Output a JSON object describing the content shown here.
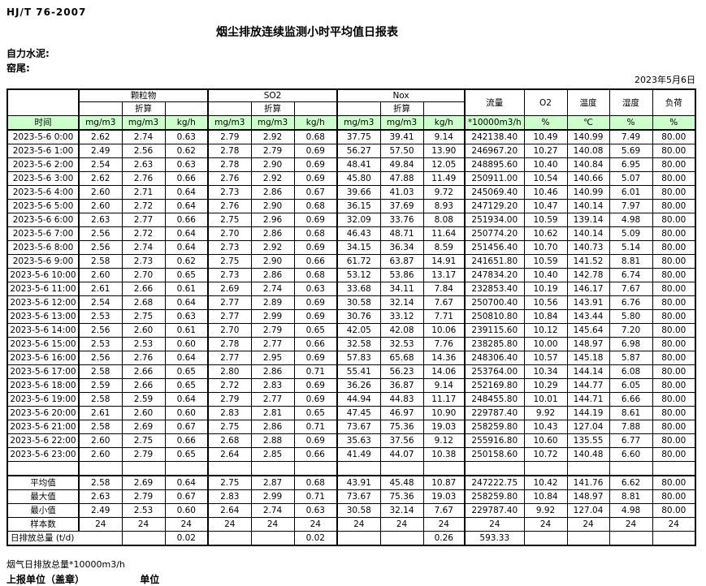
{
  "page": {
    "standard": "HJ/T  76-2007",
    "title": "烟尘排放连续监测小时平均值日报表",
    "company": "自力水泥:",
    "site": "窑尾:",
    "date": "2023年5月6日"
  },
  "colors": {
    "header_green": "#ccffcc",
    "border": "#000000"
  },
  "table": {
    "groups": {
      "pm": "颗粒物",
      "so2": "SO2",
      "nox": "Nox",
      "flow": "流量",
      "o2": "O2",
      "temp": "温度",
      "humidity": "湿度",
      "load": "负荷"
    },
    "conv_label": "折算",
    "time_label": "时间",
    "units": [
      "mg/m3",
      "mg/m3",
      "kg/h",
      "mg/m3",
      "mg/m3",
      "kg/h",
      "mg/m3",
      "mg/m3",
      "kg/h",
      "*10000m3/h",
      "%",
      "℃",
      "%",
      "%"
    ],
    "rows": [
      [
        "2023-5-6 0:00",
        "2.62",
        "2.74",
        "0.63",
        "2.79",
        "2.92",
        "0.68",
        "37.75",
        "39.41",
        "9.14",
        "242138.40",
        "10.49",
        "140.99",
        "7.49",
        "80.00"
      ],
      [
        "2023-5-6 1:00",
        "2.49",
        "2.56",
        "0.62",
        "2.78",
        "2.79",
        "0.69",
        "56.27",
        "57.50",
        "13.90",
        "246967.20",
        "10.27",
        "140.08",
        "5.69",
        "80.00"
      ],
      [
        "2023-5-6 2:00",
        "2.54",
        "2.63",
        "0.63",
        "2.78",
        "2.90",
        "0.69",
        "48.41",
        "49.84",
        "12.05",
        "248895.60",
        "10.40",
        "140.84",
        "6.95",
        "80.00"
      ],
      [
        "2023-5-6 3:00",
        "2.62",
        "2.76",
        "0.66",
        "2.76",
        "2.92",
        "0.69",
        "45.80",
        "47.88",
        "11.49",
        "250911.00",
        "10.54",
        "140.66",
        "5.07",
        "80.00"
      ],
      [
        "2023-5-6 4:00",
        "2.60",
        "2.71",
        "0.64",
        "2.73",
        "2.86",
        "0.67",
        "39.66",
        "41.03",
        "9.72",
        "245069.40",
        "10.46",
        "140.99",
        "6.01",
        "80.00"
      ],
      [
        "2023-5-6 5:00",
        "2.60",
        "2.72",
        "0.64",
        "2.76",
        "2.90",
        "0.68",
        "36.15",
        "37.69",
        "8.93",
        "247129.20",
        "10.47",
        "140.14",
        "7.97",
        "80.00"
      ],
      [
        "2023-5-6 6:00",
        "2.63",
        "2.77",
        "0.66",
        "2.75",
        "2.96",
        "0.69",
        "32.09",
        "33.76",
        "8.08",
        "251934.00",
        "10.59",
        "139.14",
        "4.98",
        "80.00"
      ],
      [
        "2023-5-6 7:00",
        "2.56",
        "2.72",
        "0.64",
        "2.70",
        "2.86",
        "0.68",
        "46.43",
        "48.71",
        "11.64",
        "250774.20",
        "10.62",
        "140.14",
        "5.09",
        "80.00"
      ],
      [
        "2023-5-6 8:00",
        "2.56",
        "2.74",
        "0.64",
        "2.73",
        "2.92",
        "0.69",
        "34.15",
        "36.34",
        "8.59",
        "251456.40",
        "10.70",
        "140.73",
        "5.14",
        "80.00"
      ],
      [
        "2023-5-6 9:00",
        "2.58",
        "2.73",
        "0.62",
        "2.75",
        "2.90",
        "0.66",
        "61.72",
        "63.87",
        "14.91",
        "241651.80",
        "10.59",
        "141.52",
        "8.81",
        "80.00"
      ],
      [
        "2023-5-6 10:00",
        "2.60",
        "2.70",
        "0.65",
        "2.73",
        "2.86",
        "0.68",
        "53.12",
        "53.86",
        "13.17",
        "247834.20",
        "10.40",
        "142.78",
        "6.74",
        "80.00"
      ],
      [
        "2023-5-6 11:00",
        "2.61",
        "2.66",
        "0.61",
        "2.69",
        "2.74",
        "0.63",
        "33.68",
        "34.11",
        "7.84",
        "232853.40",
        "10.19",
        "146.17",
        "7.67",
        "80.00"
      ],
      [
        "2023-5-6 12:00",
        "2.54",
        "2.68",
        "0.64",
        "2.77",
        "2.89",
        "0.69",
        "30.58",
        "32.14",
        "7.67",
        "250700.40",
        "10.56",
        "143.91",
        "6.76",
        "80.00"
      ],
      [
        "2023-5-6 13:00",
        "2.53",
        "2.75",
        "0.63",
        "2.77",
        "2.99",
        "0.69",
        "30.76",
        "33.12",
        "7.71",
        "250810.80",
        "10.84",
        "143.44",
        "5.80",
        "80.00"
      ],
      [
        "2023-5-6 14:00",
        "2.56",
        "2.60",
        "0.61",
        "2.70",
        "2.79",
        "0.65",
        "42.05",
        "42.08",
        "10.06",
        "239115.60",
        "10.12",
        "145.64",
        "7.20",
        "80.00"
      ],
      [
        "2023-5-6 15:00",
        "2.53",
        "2.53",
        "0.60",
        "2.78",
        "2.77",
        "0.66",
        "32.58",
        "32.53",
        "7.76",
        "238285.80",
        "10.00",
        "148.97",
        "6.98",
        "80.00"
      ],
      [
        "2023-5-6 16:00",
        "2.56",
        "2.76",
        "0.64",
        "2.77",
        "2.95",
        "0.69",
        "57.83",
        "65.68",
        "14.36",
        "248306.40",
        "10.57",
        "145.18",
        "5.87",
        "80.00"
      ],
      [
        "2023-5-6 17:00",
        "2.58",
        "2.66",
        "0.65",
        "2.80",
        "2.86",
        "0.71",
        "55.41",
        "56.23",
        "14.06",
        "253764.00",
        "10.34",
        "144.14",
        "6.08",
        "80.00"
      ],
      [
        "2023-5-6 18:00",
        "2.59",
        "2.66",
        "0.65",
        "2.72",
        "2.83",
        "0.69",
        "36.26",
        "36.87",
        "9.14",
        "252169.80",
        "10.29",
        "144.77",
        "6.05",
        "80.00"
      ],
      [
        "2023-5-6 19:00",
        "2.58",
        "2.59",
        "0.64",
        "2.79",
        "2.77",
        "0.69",
        "44.94",
        "44.83",
        "11.17",
        "248455.80",
        "10.01",
        "144.71",
        "6.66",
        "80.00"
      ],
      [
        "2023-5-6 20:00",
        "2.61",
        "2.60",
        "0.60",
        "2.83",
        "2.81",
        "0.65",
        "47.45",
        "46.97",
        "10.90",
        "229787.40",
        "9.92",
        "144.19",
        "8.61",
        "80.00"
      ],
      [
        "2023-5-6 21:00",
        "2.58",
        "2.69",
        "0.67",
        "2.75",
        "2.86",
        "0.71",
        "73.67",
        "75.36",
        "19.03",
        "258259.80",
        "10.43",
        "127.04",
        "7.88",
        "80.00"
      ],
      [
        "2023-5-6 22:00",
        "2.60",
        "2.75",
        "0.66",
        "2.68",
        "2.88",
        "0.69",
        "35.63",
        "37.56",
        "9.12",
        "255916.80",
        "10.60",
        "135.55",
        "6.77",
        "80.00"
      ],
      [
        "2023-5-6 23:00",
        "2.60",
        "2.79",
        "0.65",
        "2.64",
        "2.85",
        "0.66",
        "41.49",
        "44.07",
        "10.38",
        "250158.60",
        "10.72",
        "140.48",
        "6.60",
        "80.00"
      ]
    ],
    "summary": [
      {
        "label": "平均值",
        "values": [
          "2.58",
          "2.69",
          "0.64",
          "2.75",
          "2.87",
          "0.68",
          "43.91",
          "45.48",
          "10.87",
          "247222.75",
          "10.42",
          "141.76",
          "6.62",
          "80.00"
        ]
      },
      {
        "label": "最大值",
        "values": [
          "2.63",
          "2.79",
          "0.67",
          "2.83",
          "2.99",
          "0.71",
          "73.67",
          "75.36",
          "19.03",
          "258259.80",
          "10.84",
          "148.97",
          "8.81",
          "80.00"
        ]
      },
      {
        "label": "最小值",
        "values": [
          "2.49",
          "2.53",
          "0.60",
          "2.64",
          "2.74",
          "0.63",
          "30.58",
          "32.14",
          "7.67",
          "229787.40",
          "9.92",
          "127.04",
          "4.98",
          "80.00"
        ]
      },
      {
        "label": "样本数",
        "values": [
          "24",
          "24",
          "24",
          "24",
          "24",
          "24",
          "24",
          "24",
          "24",
          "24",
          "24",
          "24",
          "24",
          "24"
        ]
      }
    ],
    "total_row": {
      "label": "日排放总量 (t/d)",
      "values": [
        "",
        "0.02",
        "",
        "",
        "0.02",
        "",
        "",
        "0.26",
        "593.33",
        "",
        "",
        "",
        ""
      ]
    }
  },
  "footer": {
    "flow_note": "烟气日排放总量*10000m3/h",
    "report_unit": "上报单位（盖章）",
    "unit_label": "单位"
  }
}
